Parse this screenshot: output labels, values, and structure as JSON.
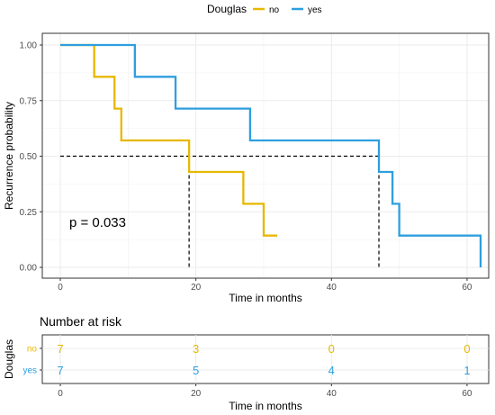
{
  "legend": {
    "title": "Douglas",
    "items": [
      {
        "label": "no",
        "color": "#E7B800"
      },
      {
        "label": "yes",
        "color": "#2E9FDF"
      }
    ]
  },
  "chart_data": {
    "type": "line",
    "subtype": "kaplan-meier step",
    "ylabel": "Recurrence probability",
    "xlabel": "Time in months",
    "xlim": [
      0,
      62
    ],
    "ylim": [
      0,
      1
    ],
    "xticks": [
      0,
      20,
      40,
      60
    ],
    "yticks": [
      0.0,
      0.25,
      0.5,
      0.75,
      1.0
    ],
    "ytick_labels": [
      "0.00",
      "0.25",
      "0.50",
      "0.75",
      "1.00"
    ],
    "grid": true,
    "legend_position": "top",
    "series": [
      {
        "name": "no",
        "color": "#E7B800",
        "steps": [
          [
            0,
            1.0
          ],
          [
            5,
            0.857
          ],
          [
            8,
            0.714
          ],
          [
            9,
            0.571
          ],
          [
            19,
            0.429
          ],
          [
            27,
            0.286
          ],
          [
            30,
            0.143
          ],
          [
            32,
            0.143
          ]
        ]
      },
      {
        "name": "yes",
        "color": "#2E9FDF",
        "steps": [
          [
            0,
            1.0
          ],
          [
            11,
            0.857
          ],
          [
            17,
            0.714
          ],
          [
            28,
            0.571
          ],
          [
            47,
            0.429
          ],
          [
            49,
            0.286
          ],
          [
            50,
            0.143
          ],
          [
            62,
            0.0
          ]
        ]
      }
    ],
    "median_lines": {
      "y": 0.5,
      "x": [
        19,
        47
      ]
    },
    "annotation": "p = 0.033"
  },
  "risk_table": {
    "title": "Number at risk",
    "ylabel": "Douglas",
    "xlabel": "Time in months",
    "times": [
      0,
      20,
      40,
      60
    ],
    "rows": [
      {
        "label": "no",
        "color": "#E7B800",
        "values": [
          "7",
          "3",
          "0",
          "0"
        ]
      },
      {
        "label": "yes",
        "color": "#2E9FDF",
        "values": [
          "7",
          "5",
          "4",
          "1"
        ]
      }
    ]
  }
}
